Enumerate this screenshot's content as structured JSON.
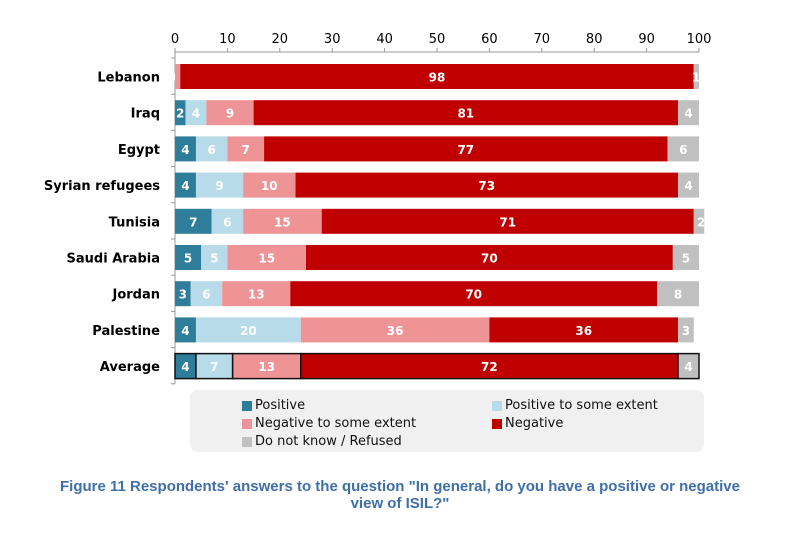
{
  "chart_data": {
    "type": "bar",
    "orientation": "horizontal",
    "stacked": true,
    "title": "",
    "xlabel": "",
    "ylabel": "",
    "xlim": [
      0,
      100
    ],
    "x_ticks": [
      0,
      10,
      20,
      30,
      40,
      50,
      60,
      70,
      80,
      90,
      100
    ],
    "x_axis_position": "top",
    "grid": false,
    "categories": [
      "Lebanon",
      "Iraq",
      "Egypt",
      "Syrian refugees",
      "Tunisia",
      "Saudi Arabia",
      "Jordan",
      "Palestine",
      "Average"
    ],
    "highlighted_category": "Average",
    "series": [
      {
        "name": "Positive",
        "color": "#2e7d9a",
        "values": [
          0,
          2,
          4,
          4,
          7,
          5,
          3,
          4,
          4
        ]
      },
      {
        "name": "Positive to some extent",
        "color": "#b7dbe9",
        "values": [
          0,
          4,
          6,
          9,
          6,
          5,
          6,
          20,
          7
        ]
      },
      {
        "name": "Negative to some extent",
        "color": "#ee9396",
        "values": [
          1,
          9,
          7,
          10,
          15,
          15,
          13,
          36,
          13
        ]
      },
      {
        "name": "Negative",
        "color": "#c00000",
        "values": [
          98,
          81,
          77,
          73,
          71,
          70,
          70,
          36,
          72
        ]
      },
      {
        "name": "Do not know / Refused",
        "color": "#c0c0c0",
        "values": [
          1,
          4,
          6,
          4,
          2,
          5,
          8,
          3,
          4
        ]
      }
    ],
    "data_labels": [
      [
        "0",
        "",
        "1",
        "98",
        "1"
      ],
      [
        "2",
        "4",
        "9",
        "81",
        "4"
      ],
      [
        "4",
        "6",
        "7",
        "77",
        "6"
      ],
      [
        "4",
        "9",
        "10",
        "73",
        "4"
      ],
      [
        "7",
        "6",
        "15",
        "71",
        "2"
      ],
      [
        "5",
        "5",
        "15",
        "70",
        "5"
      ],
      [
        "3",
        "6",
        "13",
        "70",
        "8"
      ],
      [
        "4",
        "20",
        "36",
        "36",
        "3"
      ],
      [
        "4",
        "7",
        "13",
        "72",
        "4"
      ]
    ],
    "legend": {
      "placement": "bottom",
      "entries": [
        "Positive",
        "Positive to some extent",
        "Negative to some extent",
        "Negative",
        "Do not know / Refused"
      ]
    }
  },
  "caption": {
    "line1": "Figure 11 Respondents' answers to the question \"In general, do you have a positive or negative",
    "line2": "view of ISIL?\""
  }
}
